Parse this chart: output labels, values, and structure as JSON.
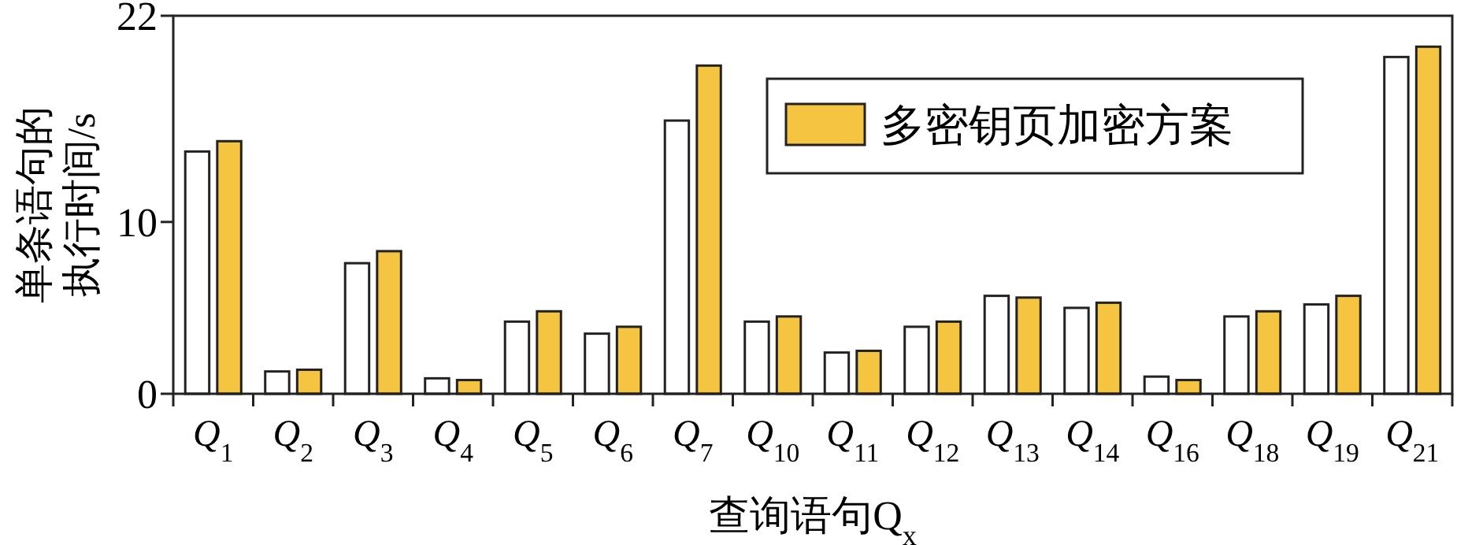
{
  "chart_data": {
    "type": "bar",
    "xlabel": "查询语句Q$_{x}$",
    "ylabel": "单条语句的执行时间/s",
    "categories": [
      "Q$_{1}$",
      "Q$_{2}$",
      "Q$_{3}$",
      "Q$_{4}$",
      "Q$_{5}$",
      "Q$_{6}$",
      "Q$_{7}$",
      "Q$_{10}$",
      "Q$_{11}$",
      "Q$_{12}$",
      "Q$_{13}$",
      "Q$_{14}$",
      "Q$_{16}$",
      "Q$_{18}$",
      "Q$_{19}$",
      "Q$_{21}$"
    ],
    "series": [
      {
        "color": "#ffffff",
        "values": [
          14.1,
          1.3,
          7.6,
          0.9,
          4.2,
          3.5,
          15.9,
          4.2,
          2.4,
          3.9,
          5.7,
          5.0,
          1.0,
          4.5,
          5.2,
          19.6
        ]
      },
      {
        "name": "多密钥页加密方案",
        "color": "#f5c542",
        "values": [
          14.7,
          1.4,
          8.3,
          0.8,
          4.8,
          3.9,
          19.1,
          4.5,
          2.5,
          4.2,
          5.6,
          5.3,
          0.8,
          4.8,
          5.7,
          20.2
        ]
      }
    ],
    "ylim": [
      0,
      22
    ],
    "yticks": [
      0,
      10,
      22
    ],
    "legend": "top right"
  }
}
